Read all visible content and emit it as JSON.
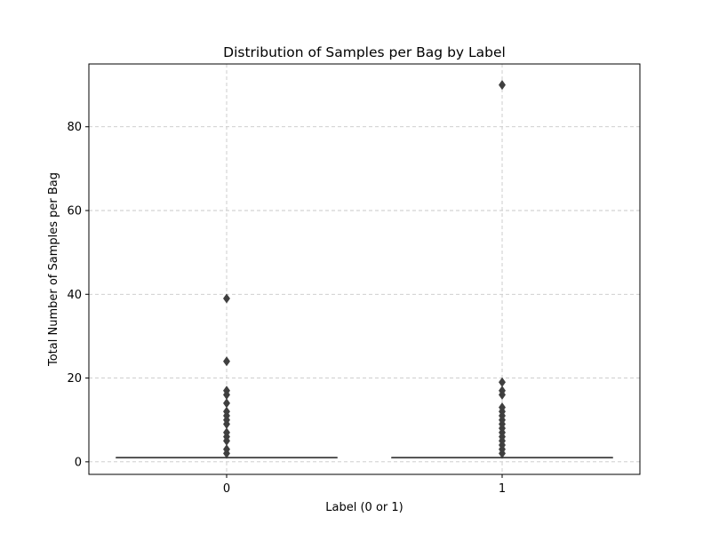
{
  "chart_data": {
    "type": "box",
    "title": "Distribution of Samples per Bag by Label",
    "xlabel": "Label (0 or 1)",
    "ylabel": "Total Number of Samples per Bag",
    "categories": [
      "0",
      "1"
    ],
    "ylim": [
      -3,
      95
    ],
    "yticks": [
      0,
      20,
      40,
      60,
      80
    ],
    "grid": true,
    "colors": {
      "box": "#3f3f3f",
      "grid": "#c8c8c8"
    },
    "boxes": [
      {
        "category": "0",
        "q1": 1,
        "median": 1,
        "q3": 1,
        "whisker_low": 1,
        "whisker_high": 1,
        "outliers": [
          2,
          3,
          5,
          6,
          7,
          9,
          10,
          11,
          12,
          14,
          16,
          17,
          24,
          39
        ]
      },
      {
        "category": "1",
        "q1": 1,
        "median": 1,
        "q3": 1,
        "whisker_low": 1,
        "whisker_high": 1,
        "outliers": [
          2,
          3,
          4,
          5,
          6,
          7,
          8,
          9,
          10,
          11,
          12,
          13,
          16,
          17,
          19,
          90
        ]
      }
    ]
  }
}
